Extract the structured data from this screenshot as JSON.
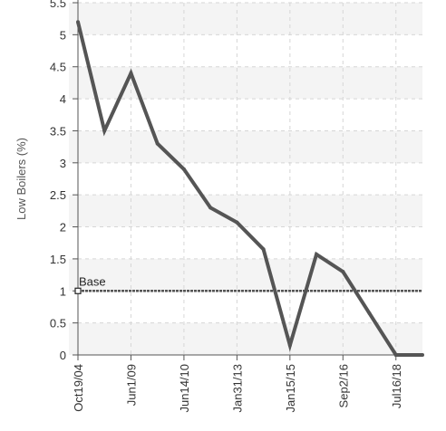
{
  "chart_data": {
    "type": "line",
    "ylabel": "Low Boilers (%)",
    "ylim": [
      0,
      5.5
    ],
    "yticks": [
      0,
      0.5,
      1,
      1.5,
      2,
      2.5,
      3,
      3.5,
      4,
      4.5,
      5,
      5.5
    ],
    "ytick_labels": [
      "0",
      "0.5",
      "1",
      "1.5",
      "2",
      "2.5",
      "3",
      "3.5",
      "4",
      "4.5",
      "5",
      "5.5"
    ],
    "x_tick_labels": [
      "Oct19/04",
      "Jun1/09",
      "Jun14/10",
      "Jan31/13",
      "Jan15/15",
      "Sep2/16",
      "Jul16/18"
    ],
    "x_tick_positions": [
      0,
      2,
      4,
      6,
      8,
      10,
      12
    ],
    "xlim": [
      0,
      13
    ],
    "grid": true,
    "series": [
      {
        "name": "",
        "color": "#555555",
        "x": [
          0,
          1,
          2,
          3,
          4,
          5,
          6,
          7,
          8,
          9,
          10,
          11,
          12,
          13
        ],
        "values": [
          5.2,
          3.5,
          4.4,
          3.3,
          2.9,
          2.3,
          2.07,
          1.65,
          0.15,
          1.57,
          1.3,
          0.65,
          0.0,
          0.0
        ]
      }
    ],
    "reference_line": {
      "label": "Base",
      "value": 1,
      "color": "#555555"
    }
  }
}
